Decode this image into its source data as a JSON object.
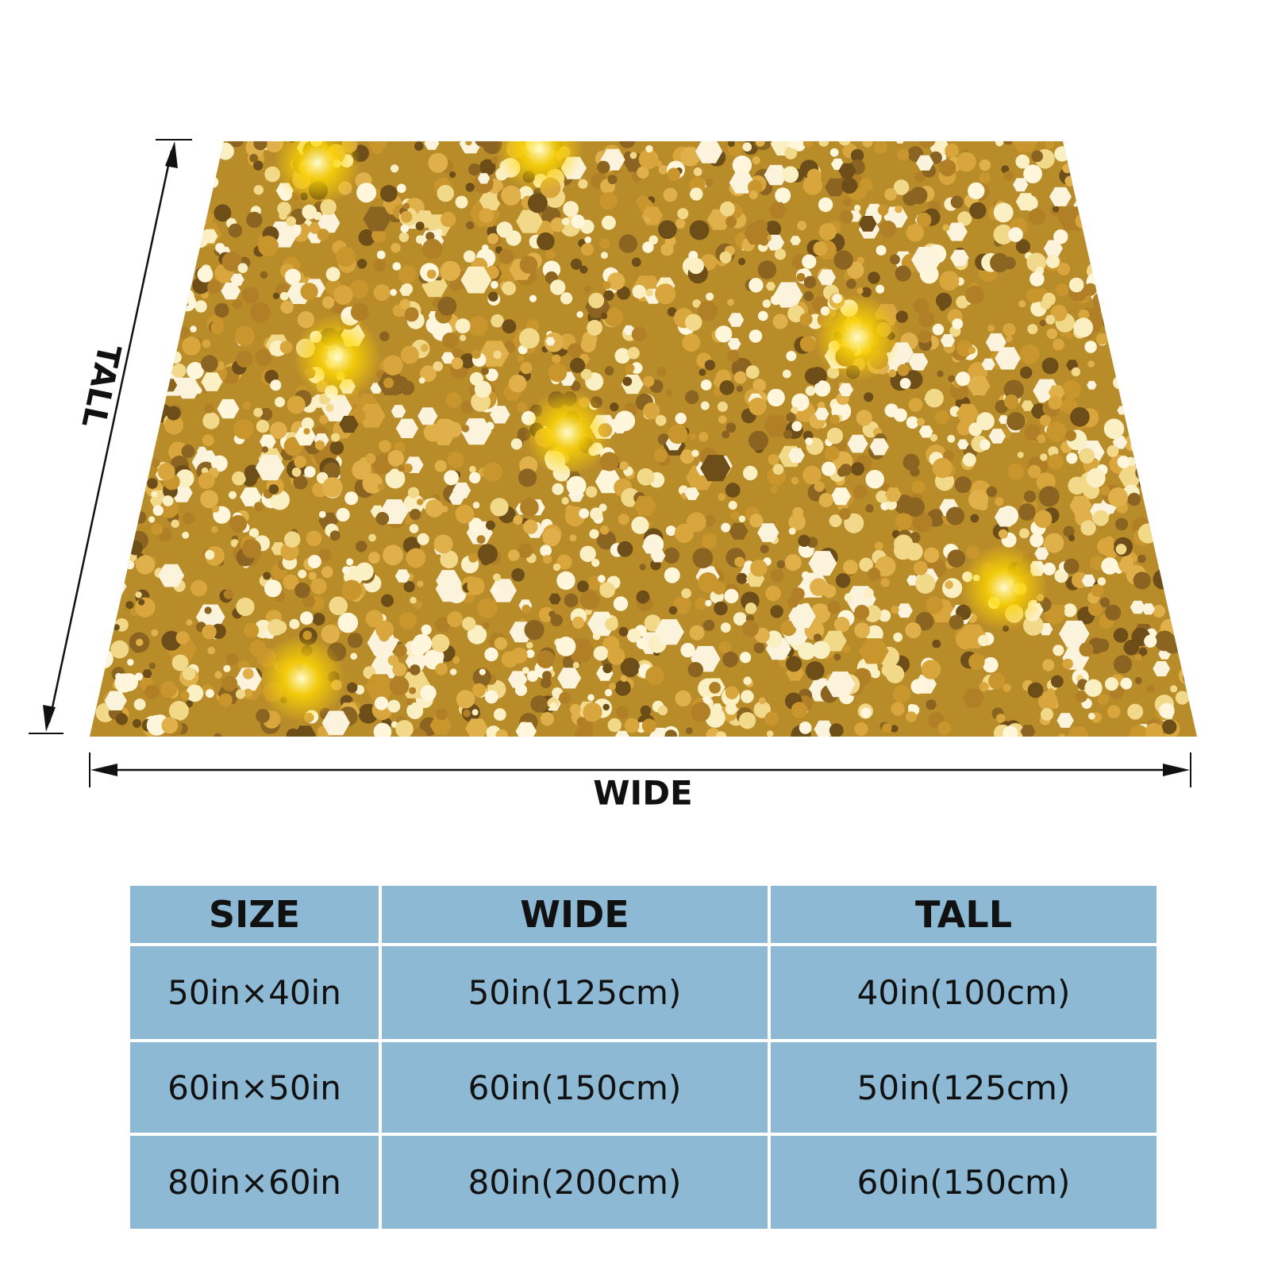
{
  "diagram": {
    "tall_label": "TALL",
    "wide_label": "WIDE"
  },
  "table": {
    "header": [
      "SIZE",
      "WIDE",
      "TALL"
    ],
    "rows": [
      [
        "50in×40in",
        "50in(125cm)",
        "40in(100cm)"
      ],
      [
        "60in×50in",
        "60in(150cm)",
        "50in(125cm)"
      ],
      [
        "80in×60in",
        "80in(200cm)",
        "60in(150cm)"
      ]
    ]
  }
}
